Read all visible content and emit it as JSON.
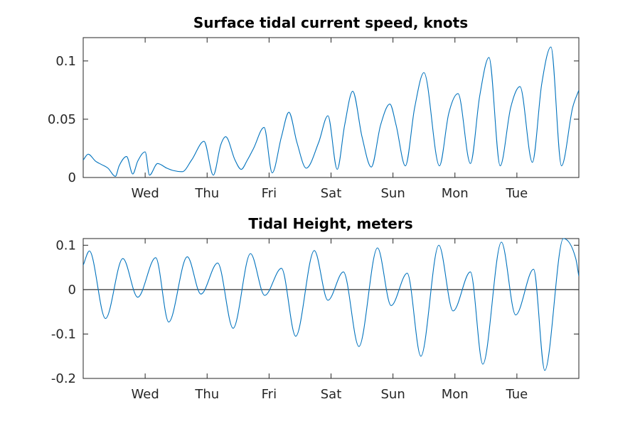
{
  "chart_data": [
    {
      "type": "line",
      "title": "Surface tidal current speed, knots",
      "xlabel": "",
      "ylabel": "",
      "xlim": [
        0,
        8
      ],
      "ylim": [
        0,
        0.12
      ],
      "x_ticks": [
        1,
        2,
        3,
        4,
        5,
        6,
        7
      ],
      "x_tick_labels": [
        "Wed",
        "Thu",
        "Fri",
        "Sat",
        "Sun",
        "Mon",
        "Tue"
      ],
      "y_ticks": [
        0,
        0.05,
        0.1
      ],
      "y_tick_labels": [
        "0",
        "0.05",
        "0.1"
      ],
      "grid": false,
      "line_color": "#0072bd",
      "series": [
        {
          "x": [
            0,
            0.08,
            0.2,
            0.3,
            0.4,
            0.52,
            0.58,
            0.7,
            0.8,
            0.88,
            1.0,
            1.07,
            1.2,
            1.35,
            1.45,
            1.6,
            1.75,
            1.95,
            2.1,
            2.22,
            2.3,
            2.45,
            2.55,
            2.65,
            2.75,
            2.92,
            3.05,
            3.2,
            3.32,
            3.45,
            3.6,
            3.8,
            3.95,
            4.1,
            4.22,
            4.35,
            4.5,
            4.65,
            4.8,
            4.95,
            5.05,
            5.2,
            5.35,
            5.5,
            5.75,
            5.9,
            6.05,
            6.25,
            6.4,
            6.55,
            6.73,
            6.9,
            7.05,
            7.25,
            7.4,
            7.55,
            7.72,
            7.9,
            8.0
          ],
          "y": [
            0.015,
            0.02,
            0.014,
            0.011,
            0.008,
            0.001,
            0.01,
            0.018,
            0.003,
            0.014,
            0.022,
            0.002,
            0.012,
            0.008,
            0.006,
            0.005,
            0.015,
            0.031,
            0.002,
            0.028,
            0.035,
            0.015,
            0.007,
            0.015,
            0.025,
            0.043,
            0.004,
            0.035,
            0.056,
            0.03,
            0.008,
            0.03,
            0.053,
            0.007,
            0.045,
            0.074,
            0.035,
            0.009,
            0.045,
            0.063,
            0.045,
            0.01,
            0.06,
            0.09,
            0.01,
            0.055,
            0.072,
            0.012,
            0.07,
            0.103,
            0.01,
            0.06,
            0.078,
            0.013,
            0.08,
            0.112,
            0.01,
            0.06,
            0.075
          ]
        }
      ]
    },
    {
      "type": "line",
      "title": "Tidal Height, meters",
      "xlabel": "",
      "ylabel": "",
      "xlim": [
        0,
        8
      ],
      "ylim": [
        -0.2,
        0.115
      ],
      "x_ticks": [
        1,
        2,
        3,
        4,
        5,
        6,
        7
      ],
      "x_tick_labels": [
        "Wed",
        "Thu",
        "Fri",
        "Sat",
        "Sun",
        "Mon",
        "Tue"
      ],
      "y_ticks": [
        -0.2,
        -0.1,
        0,
        0.1
      ],
      "y_tick_labels": [
        "-0.2",
        "-0.1",
        "0",
        "0.1"
      ],
      "grid": false,
      "zero_line": true,
      "line_color": "#0072bd",
      "series": [
        {
          "x": [
            0,
            0.1,
            0.36,
            0.64,
            0.88,
            1.17,
            1.38,
            1.68,
            1.9,
            2.17,
            2.42,
            2.7,
            2.93,
            3.2,
            3.43,
            3.73,
            3.95,
            4.2,
            4.45,
            4.75,
            4.97,
            5.23,
            5.45,
            5.74,
            5.97,
            6.25,
            6.45,
            6.75,
            6.98,
            7.27,
            7.45,
            7.75,
            7.95,
            8.0
          ],
          "y": [
            0.055,
            0.087,
            -0.065,
            0.07,
            -0.017,
            0.072,
            -0.073,
            0.074,
            -0.01,
            0.06,
            -0.087,
            0.081,
            -0.013,
            0.048,
            -0.105,
            0.088,
            -0.024,
            0.04,
            -0.128,
            0.094,
            -0.036,
            0.037,
            -0.15,
            0.1,
            -0.048,
            0.04,
            -0.168,
            0.107,
            -0.057,
            0.046,
            -0.182,
            0.115,
            0.07,
            0.03
          ]
        }
      ]
    }
  ]
}
